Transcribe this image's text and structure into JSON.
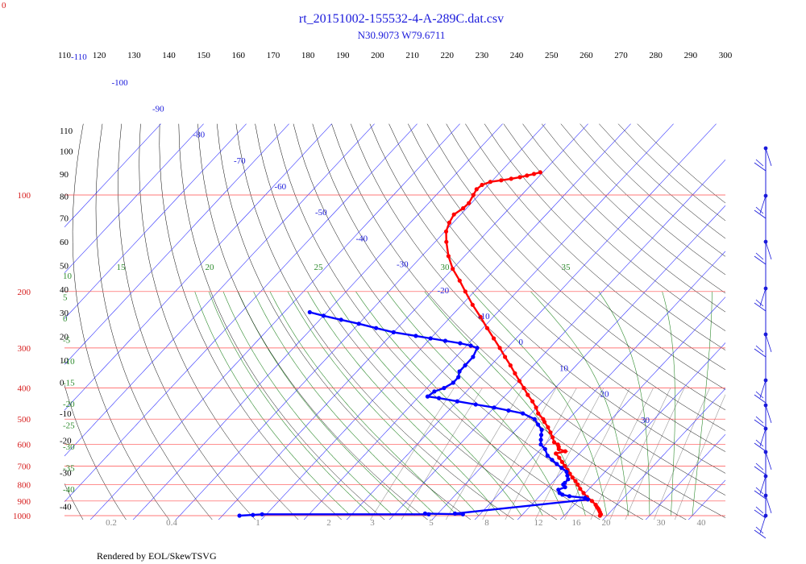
{
  "chart_data": {
    "type": "line",
    "title": "rt_20151002-155532-4-A-289C.dat.csv",
    "subtitle": "N30.9073 W79.6711",
    "footer": "Rendered by EOL/SkewTSVG",
    "corner_label": "0",
    "top_theta_labels": [
      "110",
      "120",
      "130",
      "140",
      "150",
      "160",
      "170",
      "180",
      "190",
      "200",
      "210",
      "220",
      "230",
      "240",
      "250",
      "260",
      "270",
      "280",
      "290",
      "300"
    ],
    "pressure_labels": [
      {
        "p": 100,
        "label": "100"
      },
      {
        "p": 200,
        "label": "200"
      },
      {
        "p": 300,
        "label": "300"
      },
      {
        "p": 400,
        "label": "400"
      },
      {
        "p": 500,
        "label": "500"
      },
      {
        "p": 600,
        "label": "600"
      },
      {
        "p": 700,
        "label": "700"
      },
      {
        "p": 800,
        "label": "800"
      },
      {
        "p": 900,
        "label": "900"
      },
      {
        "p": 1000,
        "label": "1000"
      }
    ],
    "height_labels": [
      {
        "p": 63,
        "label": "110"
      },
      {
        "p": 73,
        "label": "100"
      },
      {
        "p": 86,
        "label": "90"
      },
      {
        "p": 101,
        "label": "80"
      },
      {
        "p": 118,
        "label": "70"
      },
      {
        "p": 140,
        "label": "60"
      },
      {
        "p": 166,
        "label": "50"
      },
      {
        "p": 197,
        "label": "40"
      },
      {
        "p": 233,
        "label": "30"
      },
      {
        "p": 276,
        "label": "20"
      },
      {
        "p": 327,
        "label": "10"
      },
      {
        "p": 384,
        "label": "0"
      },
      {
        "p": 480,
        "label": "-10"
      },
      {
        "p": 583,
        "label": "-20"
      },
      {
        "p": 734,
        "label": "-30"
      },
      {
        "p": 935,
        "label": "-40"
      }
    ],
    "isotherm_labels": [
      {
        "t": -110,
        "label": "-110"
      },
      {
        "t": -100,
        "label": "-100"
      },
      {
        "t": -90,
        "label": "-90"
      },
      {
        "t": -80,
        "label": "-80"
      },
      {
        "t": -70,
        "label": "-70"
      },
      {
        "t": -60,
        "label": "-60"
      },
      {
        "t": -50,
        "label": "-50"
      },
      {
        "t": -40,
        "label": "-40"
      },
      {
        "t": -30,
        "label": "-30"
      },
      {
        "t": -20,
        "label": "-20"
      },
      {
        "t": -10,
        "label": "-10"
      },
      {
        "t": 0,
        "label": "0"
      },
      {
        "t": 10,
        "label": "10"
      },
      {
        "t": 20,
        "label": "20"
      },
      {
        "t": 30,
        "label": "30"
      }
    ],
    "moist_adiabat_labels": [
      {
        "label": "15"
      },
      {
        "label": "20"
      },
      {
        "label": "25"
      },
      {
        "label": "30"
      },
      {
        "label": "35"
      },
      {
        "label": "10"
      },
      {
        "label": "5"
      },
      {
        "label": "0"
      },
      {
        "label": "-5"
      },
      {
        "label": "-10"
      },
      {
        "label": "-15"
      },
      {
        "label": "-20"
      },
      {
        "label": "-25"
      },
      {
        "label": "-30"
      },
      {
        "label": "-35"
      },
      {
        "label": "-40"
      }
    ],
    "mixing_ratio_labels": [
      "0.2",
      "0.4",
      "1",
      "2",
      "3",
      "5",
      "8",
      "12",
      "16",
      "20",
      "30",
      "40"
    ],
    "series": [
      {
        "color": "#ff0000",
        "points": [
          [
            1000,
            18.4
          ],
          [
            990,
            18.3
          ],
          [
            975,
            17.6
          ],
          [
            960,
            16.9
          ],
          [
            950,
            16.4
          ],
          [
            940,
            15.8
          ],
          [
            925,
            15.0
          ],
          [
            900,
            13.3
          ],
          [
            875,
            11.3
          ],
          [
            850,
            9.6
          ],
          [
            825,
            7.9
          ],
          [
            800,
            6.4
          ],
          [
            780,
            5.1
          ],
          [
            760,
            3.6
          ],
          [
            740,
            2.2
          ],
          [
            720,
            0.8
          ],
          [
            700,
            -0.7
          ],
          [
            680,
            -2.2
          ],
          [
            660,
            -3.8
          ],
          [
            640,
            -5.5
          ],
          [
            630,
            -3.8
          ],
          [
            620,
            -5.8
          ],
          [
            610,
            -6.3
          ],
          [
            600,
            -7.0
          ],
          [
            590,
            -8.4
          ],
          [
            570,
            -9.8
          ],
          [
            550,
            -11.4
          ],
          [
            530,
            -13.1
          ],
          [
            510,
            -15.1
          ],
          [
            500,
            -16.0
          ],
          [
            480,
            -18.4
          ],
          [
            460,
            -20.2
          ],
          [
            440,
            -22.4
          ],
          [
            420,
            -24.9
          ],
          [
            400,
            -27.3
          ],
          [
            380,
            -29.9
          ],
          [
            360,
            -32.6
          ],
          [
            340,
            -35.4
          ],
          [
            320,
            -38.5
          ],
          [
            300,
            -41.7
          ],
          [
            280,
            -45.2
          ],
          [
            260,
            -49.0
          ],
          [
            240,
            -53.0
          ],
          [
            220,
            -57.5
          ],
          [
            200,
            -62.1
          ],
          [
            185,
            -65.8
          ],
          [
            170,
            -70.0
          ],
          [
            155,
            -73.8
          ],
          [
            140,
            -77.4
          ],
          [
            130,
            -79.7
          ],
          [
            122,
            -80.9
          ],
          [
            115,
            -81.6
          ],
          [
            110,
            -80.8
          ],
          [
            106,
            -80.6
          ],
          [
            100,
            -81.3
          ],
          [
            96,
            -81.8
          ],
          [
            93,
            -81.5
          ],
          [
            91,
            -80.2
          ],
          [
            90,
            -78.0
          ],
          [
            89,
            -76.0
          ],
          [
            88,
            -74.3
          ],
          [
            87,
            -73.0
          ],
          [
            86,
            -71.7
          ],
          [
            85,
            -70.6
          ]
        ]
      },
      {
        "color": "#0000ff",
        "points": [
          [
            1000,
            -66.0
          ],
          [
            995,
            -63.0
          ],
          [
            990,
            -61.0
          ],
          [
            990,
            -22.0
          ],
          [
            985,
            -23.0
          ],
          [
            990,
            -14.0
          ],
          [
            985,
            -16.0
          ],
          [
            890,
            12.0
          ],
          [
            880,
            11.0
          ],
          [
            870,
            7.0
          ],
          [
            860,
            5.0
          ],
          [
            850,
            4.0
          ],
          [
            830,
            3.0
          ],
          [
            815,
            4.0
          ],
          [
            800,
            3.0
          ],
          [
            790,
            3.0
          ],
          [
            770,
            3.0
          ],
          [
            750,
            2.0
          ],
          [
            730,
            1.0
          ],
          [
            710,
            -1.0
          ],
          [
            690,
            -3.0
          ],
          [
            670,
            -5.0
          ],
          [
            650,
            -7.0
          ],
          [
            620,
            -9.0
          ],
          [
            600,
            -11.0
          ],
          [
            580,
            -12.0
          ],
          [
            560,
            -13.0
          ],
          [
            540,
            -14.0
          ],
          [
            520,
            -16.0
          ],
          [
            500,
            -18.0
          ],
          [
            480,
            -22.0
          ],
          [
            470,
            -26.0
          ],
          [
            460,
            -30.0
          ],
          [
            450,
            -35.0
          ],
          [
            440,
            -40.0
          ],
          [
            430,
            -45.0
          ],
          [
            425,
            -48.0
          ],
          [
            410,
            -47.5
          ],
          [
            400,
            -46.0
          ],
          [
            385,
            -45.0
          ],
          [
            370,
            -45.0
          ],
          [
            355,
            -46.0
          ],
          [
            340,
            -46.0
          ],
          [
            320,
            -46.0
          ],
          [
            300,
            -47.0
          ],
          [
            295,
            -49.0
          ],
          [
            290,
            -52.0
          ],
          [
            285,
            -56.0
          ],
          [
            280,
            -60.0
          ],
          [
            275,
            -64.0
          ],
          [
            268,
            -70.0
          ],
          [
            260,
            -75.0
          ],
          [
            252,
            -80.0
          ],
          [
            245,
            -85.0
          ],
          [
            238,
            -90.0
          ],
          [
            232,
            -94.0
          ]
        ]
      }
    ],
    "wind_barbs": [
      {
        "p": 100,
        "label": "wind barb"
      },
      {
        "p": 150,
        "label": "wind barb"
      },
      {
        "p": 200,
        "label": "wind barb"
      },
      {
        "p": 250,
        "label": "wind barb"
      },
      {
        "p": 300,
        "label": "wind barb"
      },
      {
        "p": 400,
        "label": "wind barb"
      },
      {
        "p": 500,
        "label": "wind barb"
      },
      {
        "p": 600,
        "label": "wind barb"
      },
      {
        "p": 700,
        "label": "wind barb"
      },
      {
        "p": 800,
        "label": "wind barb"
      },
      {
        "p": 900,
        "label": "wind barb"
      },
      {
        "p": 1000,
        "label": "wind barb"
      }
    ],
    "colors": {
      "isobar": "#ff4d4d",
      "isotherm": "#3333ff",
      "dry_adiabat": "#000000",
      "moist_adiabat": "#2e8b2e",
      "mixing_ratio": "#9a9a9a",
      "text_blue": "#1a1adb",
      "text_red": "#d61a1a",
      "text_green": "#2e8b2e"
    }
  }
}
